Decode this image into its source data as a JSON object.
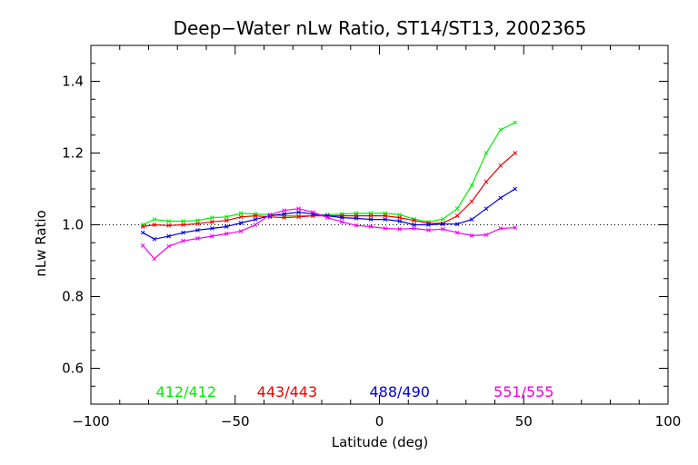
{
  "chart_data": {
    "type": "line",
    "title": "Deep−Water nLw Ratio, ST14/ST13, 2002365",
    "xlabel": "Latitude (deg)",
    "ylabel": "nLw Ratio",
    "xlim": [
      -100,
      100
    ],
    "ylim": [
      0.5,
      1.5
    ],
    "x_ticks": [
      "−100",
      "−50",
      "0",
      "50",
      "100"
    ],
    "y_ticks": [
      "0.6",
      "0.8",
      "1.0",
      "1.2",
      "1.4"
    ],
    "reference_line": 1.0,
    "x": [
      -82,
      -78,
      -73,
      -68,
      -63,
      -58,
      -53,
      -48,
      -43,
      -38,
      -33,
      -28,
      -23,
      -18,
      -13,
      -8,
      -3,
      2,
      7,
      12,
      17,
      22,
      27,
      32,
      37,
      42,
      47
    ],
    "series": [
      {
        "name": "412/412",
        "color": "#00ee00",
        "values": [
          1.0,
          1.015,
          1.01,
          1.01,
          1.012,
          1.02,
          1.022,
          1.032,
          1.03,
          1.028,
          1.025,
          1.025,
          1.025,
          1.028,
          1.03,
          1.032,
          1.032,
          1.032,
          1.028,
          1.016,
          1.008,
          1.016,
          1.045,
          1.11,
          1.2,
          1.265,
          1.285
        ]
      },
      {
        "name": "443/443",
        "color": "#ee0000",
        "values": [
          0.995,
          1.0,
          0.998,
          1.0,
          1.003,
          1.008,
          1.012,
          1.022,
          1.025,
          1.022,
          1.02,
          1.022,
          1.025,
          1.025,
          1.025,
          1.025,
          1.025,
          1.025,
          1.02,
          1.012,
          1.004,
          1.004,
          1.025,
          1.065,
          1.12,
          1.165,
          1.2
        ]
      },
      {
        "name": "488/490",
        "color": "#0000dd",
        "values": [
          0.978,
          0.96,
          0.968,
          0.978,
          0.985,
          0.99,
          0.995,
          1.005,
          1.015,
          1.025,
          1.03,
          1.035,
          1.03,
          1.025,
          1.02,
          1.018,
          1.015,
          1.015,
          1.01,
          1.0,
          1.0,
          1.002,
          1.002,
          1.015,
          1.045,
          1.075,
          1.1
        ]
      },
      {
        "name": "551/555",
        "color": "#ee00ee",
        "values": [
          0.942,
          0.905,
          0.94,
          0.955,
          0.962,
          0.968,
          0.975,
          0.982,
          1.0,
          1.028,
          1.04,
          1.045,
          1.035,
          1.02,
          1.008,
          0.998,
          0.995,
          0.99,
          0.988,
          0.99,
          0.985,
          0.988,
          0.978,
          0.97,
          0.972,
          0.99,
          0.992
        ]
      }
    ],
    "grid": false,
    "legend": "bottom, inside plot"
  }
}
